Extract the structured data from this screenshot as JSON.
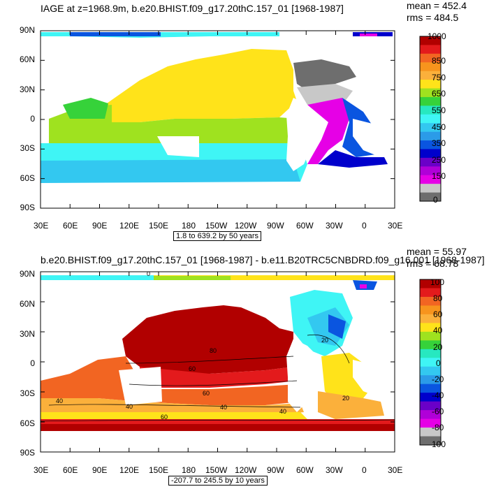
{
  "panels": [
    {
      "title": "IAGE at z=1968.9m, b.e20.BHIST.f09_g17.20thC.157_01 [1968-1987]",
      "stats": [
        "mean = 452.4",
        "rms = 484.5"
      ],
      "subtitle": "1.8 to 639.2 by 50 years",
      "lat_labels": [
        "90N",
        "60N",
        "30N",
        "0",
        "30S",
        "60S",
        "90S"
      ],
      "lon_labels": [
        "30E",
        "60E",
        "90E",
        "120E",
        "150E",
        "180",
        "150W",
        "120W",
        "90W",
        "60W",
        "30W",
        "0",
        "30E"
      ],
      "colorbar": {
        "labels": [
          "1000",
          "850",
          "750",
          "650",
          "550",
          "450",
          "350",
          "250",
          "150",
          "0"
        ],
        "colors": [
          "#b10000",
          "#e31a1c",
          "#f26522",
          "#f7941d",
          "#fbb03b",
          "#ffe31a",
          "#9fe21f",
          "#36d23a",
          "#27e8c0",
          "#3ff5f5",
          "#33c8f0",
          "#2b9be8",
          "#0a55e0",
          "#0000cc",
          "#6a00c8",
          "#b000d8",
          "#e600e6",
          "#c8c8c8",
          "#6e6e6e"
        ]
      }
    },
    {
      "title": "b.e20.BHIST.f09_g17.20thC.157_01 [1968-1987] - b.e11.B20TRC5CNBDRD.f09_g16.001 [1968-1987]",
      "stats": [
        "mean = 55.97",
        "rms = 68.78"
      ],
      "subtitle": "-207.7 to 245.5 by 10 years",
      "lat_labels": [
        "90N",
        "60N",
        "30N",
        "0",
        "30S",
        "60S",
        "90S"
      ],
      "lon_labels": [
        "30E",
        "60E",
        "90E",
        "120E",
        "150E",
        "180",
        "150W",
        "120W",
        "90W",
        "60W",
        "30W",
        "0",
        "30E"
      ],
      "contour_labels": [
        "80",
        "60",
        "40",
        "60",
        "40",
        "20",
        "0",
        "40",
        "60",
        "20",
        "40"
      ],
      "colorbar": {
        "labels": [
          "100",
          "80",
          "60",
          "40",
          "20",
          "0",
          "-20",
          "-40",
          "-60",
          "-80",
          "-100"
        ],
        "colors": [
          "#b10000",
          "#e31a1c",
          "#f26522",
          "#f7941d",
          "#fbb03b",
          "#ffe31a",
          "#9fe21f",
          "#36d23a",
          "#27e8c0",
          "#3ff5f5",
          "#33c8f0",
          "#2b9be8",
          "#0a55e0",
          "#0000cc",
          "#6a00c8",
          "#b000d8",
          "#e600e6",
          "#c8c8c8",
          "#6e6e6e"
        ]
      }
    }
  ]
}
